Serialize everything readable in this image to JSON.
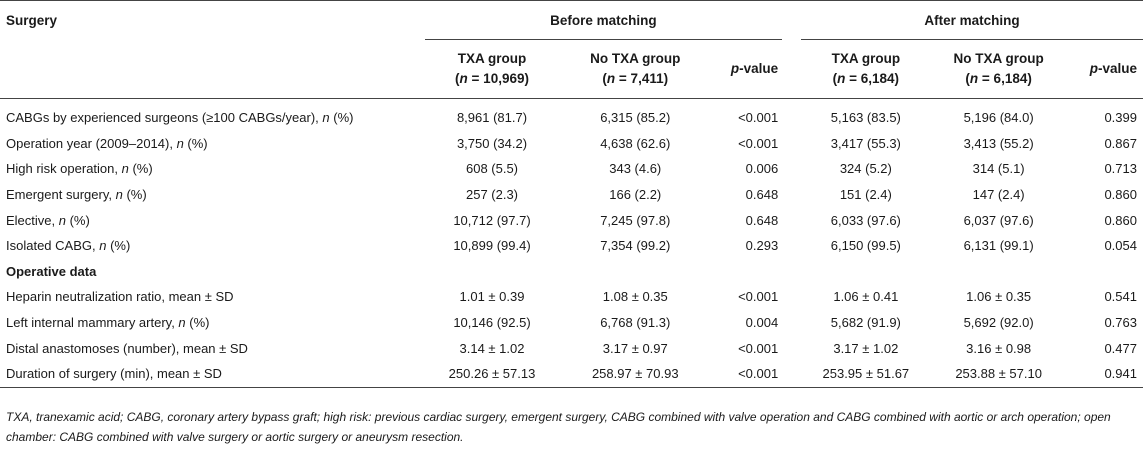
{
  "header": {
    "surgery_label": "Surgery",
    "before_label": "Before matching",
    "after_label": "After matching",
    "columns": [
      {
        "group": "TXA group",
        "n_label": "n",
        "n_value": " = 10,969)"
      },
      {
        "group": "No TXA group",
        "n_label": "n",
        "n_value": " = 7,411)"
      },
      {
        "p_label": "p",
        "p_suffix": "-value"
      },
      {
        "group": "TXA group",
        "n_label": "n",
        "n_value": " = 6,184)"
      },
      {
        "group": "No TXA group",
        "n_label": "n",
        "n_value": " = 6,184)"
      },
      {
        "p_label": "p",
        "p_suffix": "-value"
      }
    ]
  },
  "rows": [
    {
      "label": "CABGs by experienced surgeons (≥100 CABGs/year), ",
      "label_italic": "n",
      "label_suffix": " (%)",
      "v": [
        "8,961 (81.7)",
        "6,315 (85.2)",
        "<0.001",
        "5,163 (83.5)",
        "5,196 (84.0)",
        "0.399"
      ]
    },
    {
      "label": "Operation year (2009–2014), ",
      "label_italic": "n",
      "label_suffix": " (%)",
      "v": [
        "3,750 (34.2)",
        "4,638 (62.6)",
        "<0.001",
        "3,417 (55.3)",
        "3,413 (55.2)",
        "0.867"
      ]
    },
    {
      "label": "High risk operation, ",
      "label_italic": "n",
      "label_suffix": " (%)",
      "v": [
        "608 (5.5)",
        "343 (4.6)",
        "0.006",
        "324 (5.2)",
        "314 (5.1)",
        "0.713"
      ]
    },
    {
      "label": "Emergent surgery, ",
      "label_italic": "n",
      "label_suffix": " (%)",
      "v": [
        "257 (2.3)",
        "166 (2.2)",
        "0.648",
        "151 (2.4)",
        "147 (2.4)",
        "0.860"
      ]
    },
    {
      "label": "Elective, ",
      "label_italic": "n",
      "label_suffix": " (%)",
      "v": [
        "10,712 (97.7)",
        "7,245 (97.8)",
        "0.648",
        "6,033 (97.6)",
        "6,037 (97.6)",
        "0.860"
      ]
    },
    {
      "label": "Isolated CABG, ",
      "label_italic": "n",
      "label_suffix": " (%)",
      "v": [
        "10,899 (99.4)",
        "7,354 (99.2)",
        "0.293",
        "6,150 (99.5)",
        "6,131 (99.1)",
        "0.054"
      ]
    }
  ],
  "section_operative": "Operative data",
  "rows2": [
    {
      "label": "Heparin neutralization ratio, mean ± SD",
      "v": [
        "1.01 ± 0.39",
        "1.08 ± 0.35",
        "<0.001",
        "1.06 ± 0.41",
        "1.06 ± 0.35",
        "0.541"
      ]
    },
    {
      "label": "Left internal mammary artery, ",
      "label_italic": "n",
      "label_suffix": " (%)",
      "v": [
        "10,146 (92.5)",
        "6,768 (91.3)",
        "0.004",
        "5,682 (91.9)",
        "5,692 (92.0)",
        "0.763"
      ]
    },
    {
      "label": "Distal anastomoses (number), mean ± SD",
      "v": [
        "3.14 ± 1.02",
        "3.17 ± 0.97",
        "<0.001",
        "3.17 ± 1.02",
        "3.16 ± 0.98",
        "0.477"
      ]
    },
    {
      "label": "Duration of surgery (min), mean ± SD",
      "v": [
        "250.26 ± 57.13",
        "258.97 ± 70.93",
        "<0.001",
        "253.95 ± 51.67",
        "253.88 ± 57.10",
        "0.941"
      ]
    }
  ],
  "footnote": "TXA, tranexamic acid; CABG, coronary artery bypass graft; high risk: previous cardiac surgery, emergent surgery, CABG combined with valve operation and CABG combined with aortic or arch operation; open chamber: CABG combined with valve surgery or aortic surgery or aneurysm resection."
}
